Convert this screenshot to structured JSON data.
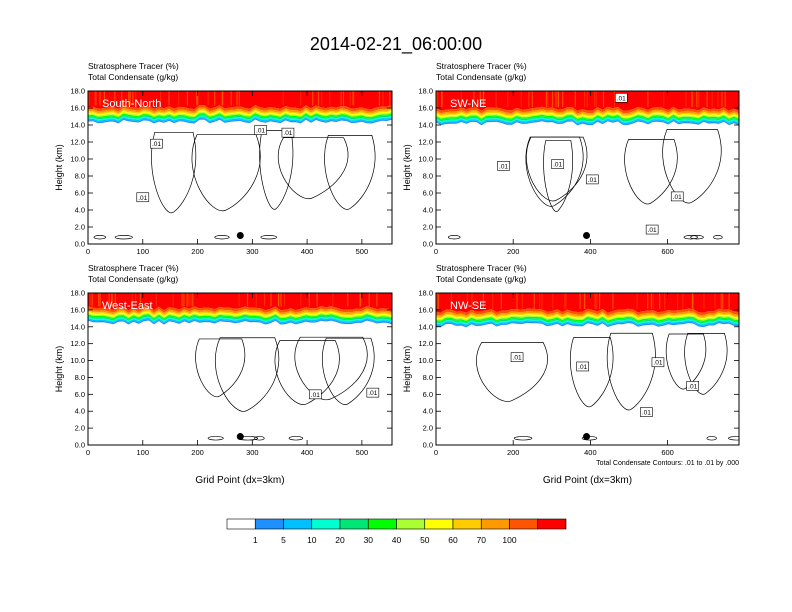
{
  "figure": {
    "title": "2014-02-21_06:00:00",
    "contour_note": "Total Condensate Contours: .01 to .01 by .000"
  },
  "colorbar": {
    "colors": [
      "#ffffff",
      "#1e90ff",
      "#00bfff",
      "#00ffd0",
      "#00e676",
      "#00ff00",
      "#aaff32",
      "#ffff00",
      "#ffcc00",
      "#ff9900",
      "#ff5500",
      "#ff0000"
    ],
    "labels": [
      "1",
      "5",
      "10",
      "20",
      "30",
      "40",
      "50",
      "60",
      "70",
      "100"
    ]
  },
  "chart_data": [
    {
      "type": "heatmap",
      "panel": "South-North",
      "subtitle_left": "Stratosphere Tracer   (%)",
      "subtitle_left2": "Total Condensate   (g/kg)",
      "ylabel": "Height (km)",
      "xlabel": "",
      "xlim": [
        0,
        555
      ],
      "ylim": [
        0,
        18
      ],
      "xticks": [
        0,
        100,
        200,
        300,
        400,
        500
      ],
      "yticks": [
        0.0,
        2.0,
        4.0,
        6.0,
        8.0,
        10.0,
        12.0,
        14.0,
        16.0,
        18.0
      ],
      "tropopause_km": 15.2,
      "contour_labels": [
        {
          "x": 125,
          "y": 11.8,
          "text": ".01"
        },
        {
          "x": 100,
          "y": 5.5,
          "text": ".01"
        },
        {
          "x": 315,
          "y": 13.4,
          "text": ".01"
        },
        {
          "x": 365,
          "y": 13.1,
          "text": ".01"
        }
      ],
      "marker": {
        "x": 278,
        "y": 1.0
      }
    },
    {
      "type": "heatmap",
      "panel": "SW-NE",
      "subtitle_left": "Stratosphere Tracer   (%)",
      "subtitle_left2": "Total Condensate   (g/kg)",
      "ylabel": "Height (km)",
      "xlabel": "",
      "xlim": [
        0,
        785
      ],
      "ylim": [
        0,
        18
      ],
      "xticks": [
        0,
        200,
        400,
        600
      ],
      "yticks": [
        0.0,
        2.0,
        4.0,
        6.0,
        8.0,
        10.0,
        12.0,
        14.0,
        16.0,
        18.0
      ],
      "tropopause_km": 15.0,
      "contour_labels": [
        {
          "x": 480,
          "y": 17.2,
          "text": ".01"
        },
        {
          "x": 175,
          "y": 9.2,
          "text": ".01"
        },
        {
          "x": 315,
          "y": 9.4,
          "text": ".01"
        },
        {
          "x": 405,
          "y": 7.6,
          "text": ".01"
        },
        {
          "x": 625,
          "y": 5.6,
          "text": ".01"
        },
        {
          "x": 560,
          "y": 1.7,
          "text": ".01"
        }
      ],
      "marker": {
        "x": 390,
        "y": 1.0
      }
    },
    {
      "type": "heatmap",
      "panel": "West-East",
      "subtitle_left": "Stratosphere Tracer   (%)",
      "subtitle_left2": "Total Condensate   (g/kg)",
      "ylabel": "Height (km)",
      "xlabel": "Grid Point (dx=3km)",
      "xlim": [
        0,
        555
      ],
      "ylim": [
        0,
        18
      ],
      "xticks": [
        0,
        100,
        200,
        300,
        400,
        500
      ],
      "yticks": [
        0.0,
        2.0,
        4.0,
        6.0,
        8.0,
        10.0,
        12.0,
        14.0,
        16.0,
        18.0
      ],
      "tropopause_km": 15.3,
      "contour_labels": [
        {
          "x": 415,
          "y": 6.0,
          "text": ".01"
        },
        {
          "x": 520,
          "y": 6.2,
          "text": ".01"
        }
      ],
      "marker": {
        "x": 278,
        "y": 1.0
      }
    },
    {
      "type": "heatmap",
      "panel": "NW-SE",
      "subtitle_left": "Stratosphere Tracer   (%)",
      "subtitle_left2": "Total Condensate   (g/kg)",
      "ylabel": "Height (km)",
      "xlabel": "Grid Point (dx=3km)",
      "xlim": [
        0,
        785
      ],
      "ylim": [
        0,
        18
      ],
      "xticks": [
        0,
        200,
        400,
        600
      ],
      "yticks": [
        0.0,
        2.0,
        4.0,
        6.0,
        8.0,
        10.0,
        12.0,
        14.0,
        16.0,
        18.0
      ],
      "tropopause_km": 15.0,
      "contour_labels": [
        {
          "x": 210,
          "y": 10.4,
          "text": ".01"
        },
        {
          "x": 380,
          "y": 9.3,
          "text": ".01"
        },
        {
          "x": 575,
          "y": 9.8,
          "text": ".01"
        },
        {
          "x": 665,
          "y": 7.0,
          "text": ".01"
        },
        {
          "x": 545,
          "y": 3.9,
          "text": ".01"
        }
      ],
      "marker": {
        "x": 390,
        "y": 1.0
      }
    }
  ]
}
